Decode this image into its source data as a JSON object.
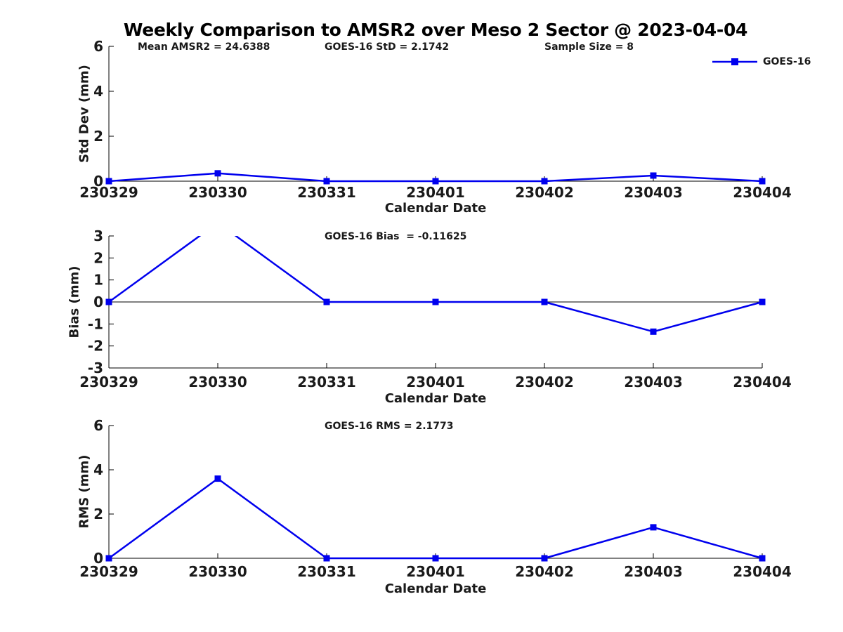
{
  "title": "Weekly Comparison to AMSR2 over Meso 2 Sector @ 2023-04-04",
  "annotations": {
    "mean_amsr2": "Mean AMSR2 = 24.6388",
    "goes16_std": "GOES-16 StD = 2.1742",
    "sample_size": "Sample Size = 8",
    "goes16_bias": "GOES-16 Bias  = -0.11625",
    "goes16_rms": "GOES-16 RMS = 2.1773"
  },
  "legend": {
    "label": "GOES-16",
    "position": "top-right",
    "marker": "square"
  },
  "colors": {
    "line": "#0000ee",
    "axis": "#000000",
    "text": "#1a1a1a"
  },
  "chart_data": [
    {
      "type": "line",
      "id": "stddev",
      "series_name": "GOES-16",
      "ylabel": "Std Dev (mm)",
      "xlabel": "Calendar Date",
      "categories": [
        "230329",
        "230330",
        "230331",
        "230401",
        "230402",
        "230403",
        "230404"
      ],
      "values": [
        0,
        0.35,
        0,
        0,
        0,
        0.25,
        0
      ],
      "ylim": [
        0,
        6
      ],
      "yticks": [
        0,
        2,
        4,
        6
      ],
      "grid": false
    },
    {
      "type": "line",
      "id": "bias",
      "series_name": "GOES-16",
      "ylabel": "Bias (mm)",
      "xlabel": "Calendar Date",
      "categories": [
        "230329",
        "230330",
        "230331",
        "230401",
        "230402",
        "230403",
        "230404"
      ],
      "values": [
        0,
        3.6,
        0,
        0,
        0,
        -1.35,
        0
      ],
      "ylim": [
        -3,
        3
      ],
      "yticks": [
        3,
        2,
        1,
        0,
        -1,
        -2,
        -3
      ],
      "zero_line": true,
      "note": "value at 230330 exceeds ymax; line clipped at top of axes",
      "grid": false
    },
    {
      "type": "line",
      "id": "rms",
      "series_name": "GOES-16",
      "ylabel": "RMS (mm)",
      "xlabel": "Calendar Date",
      "categories": [
        "230329",
        "230330",
        "230331",
        "230401",
        "230402",
        "230403",
        "230404"
      ],
      "values": [
        0,
        3.6,
        0,
        0,
        0,
        1.4,
        0
      ],
      "ylim": [
        0,
        6
      ],
      "yticks": [
        0,
        2,
        4,
        6
      ],
      "grid": false
    }
  ]
}
